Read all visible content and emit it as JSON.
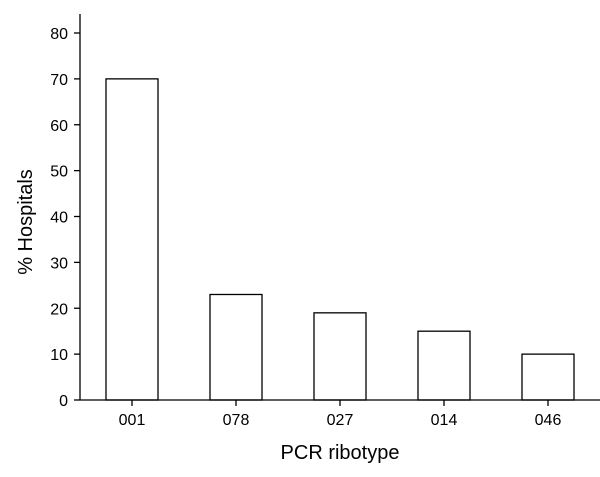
{
  "chart_data": {
    "type": "bar",
    "categories": [
      "001",
      "078",
      "027",
      "014",
      "046"
    ],
    "values": [
      70,
      23,
      19,
      15,
      10
    ],
    "xlabel": "PCR ribotype",
    "ylabel": "% Hospitals",
    "ylim": [
      0,
      80
    ],
    "yticks": [
      0,
      10,
      20,
      30,
      40,
      50,
      60,
      70,
      80
    ],
    "grid": false,
    "colors": {
      "bar_fill": "#ffffff",
      "bar_stroke": "#000000"
    }
  }
}
